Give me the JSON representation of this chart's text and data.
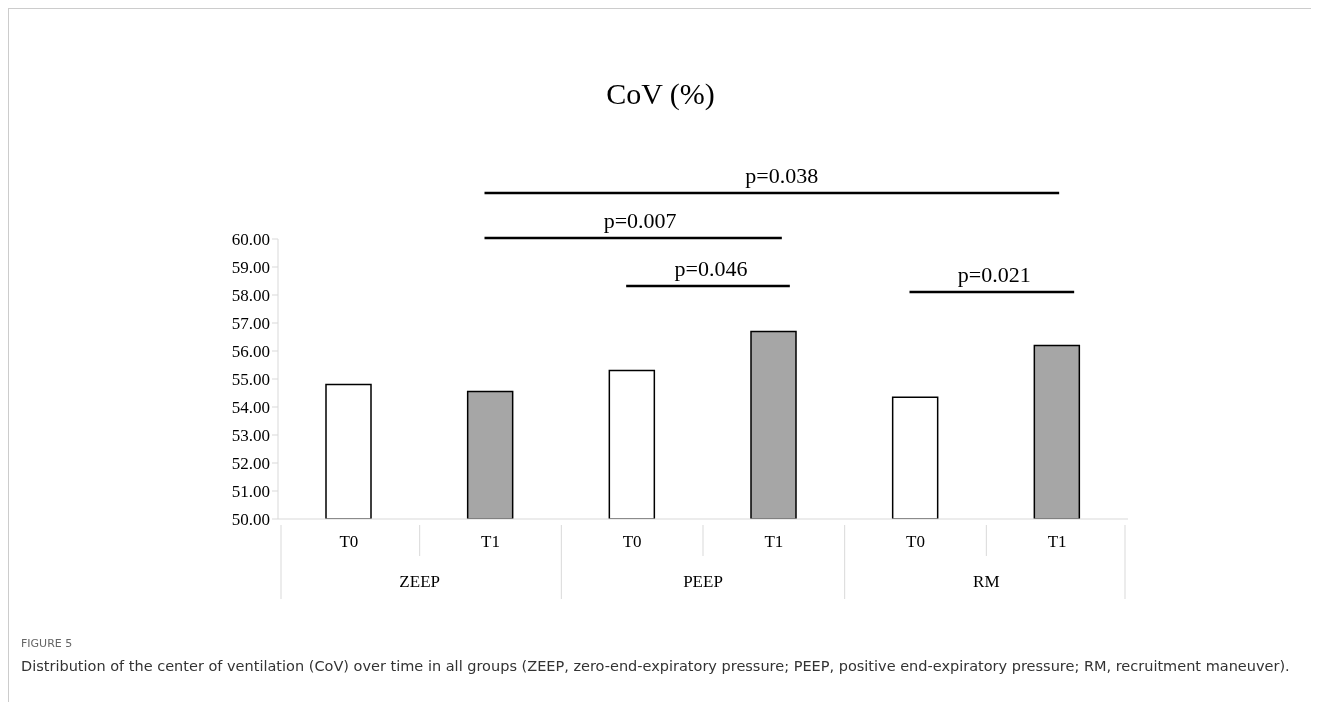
{
  "chart_data": {
    "type": "bar",
    "title": "CoV (%)",
    "categories": [
      "T0",
      "T1",
      "T0",
      "T1",
      "T0",
      "T1"
    ],
    "values": [
      54.8,
      54.55,
      55.3,
      56.7,
      54.35,
      56.2
    ],
    "colors": [
      "#ffffff",
      "#a6a6a6",
      "#ffffff",
      "#a6a6a6",
      "#ffffff",
      "#a6a6a6"
    ],
    "ylim": [
      50,
      60
    ],
    "yticks": [
      {
        "value": 50,
        "label": "50.00"
      },
      {
        "value": 51,
        "label": "51.00"
      },
      {
        "value": 52,
        "label": "52.00"
      },
      {
        "value": 53,
        "label": "53.00"
      },
      {
        "value": 54,
        "label": "54.00"
      },
      {
        "value": 55,
        "label": "55.00"
      },
      {
        "value": 56,
        "label": "56.00"
      },
      {
        "value": 57,
        "label": "57.00"
      },
      {
        "value": 58,
        "label": "58.00"
      },
      {
        "value": 59,
        "label": "59.00"
      },
      {
        "value": 60,
        "label": "60.00"
      }
    ],
    "grid": false,
    "legend": false,
    "annotations": [
      "p=0.038",
      "p=0.007",
      "p=0.046",
      "p=0.021",
      "ZEEP",
      "PEEP",
      "RM",
      "FIGURE 5",
      "Distribution of the center of ventilation (CoV) over time in all groups (ZEEP, zero-end-expiratory pressure; PEEP, positive end-expiratory pressure; RM, recruitment maneuver)."
    ]
  }
}
